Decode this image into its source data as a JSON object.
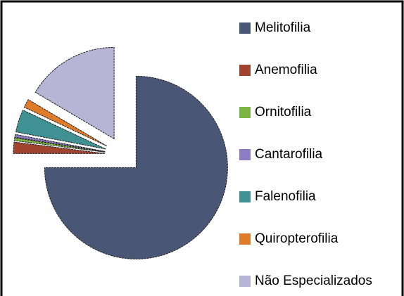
{
  "chart_data": {
    "type": "pie",
    "categories": [
      "Melitofilia",
      "Anemofilia",
      "Ornitofilia",
      "Cantarofilia",
      "Falenofilia",
      "Quiropterofilia",
      "Não Especializados"
    ],
    "values": [
      75,
      2,
      0.5,
      0.5,
      4,
      1.5,
      16.5
    ],
    "colors": [
      "#4a5675",
      "#a0432f",
      "#7cb342",
      "#8e7cc3",
      "#3f9194",
      "#e07b2a",
      "#b8b4d6"
    ],
    "legend": "right"
  }
}
